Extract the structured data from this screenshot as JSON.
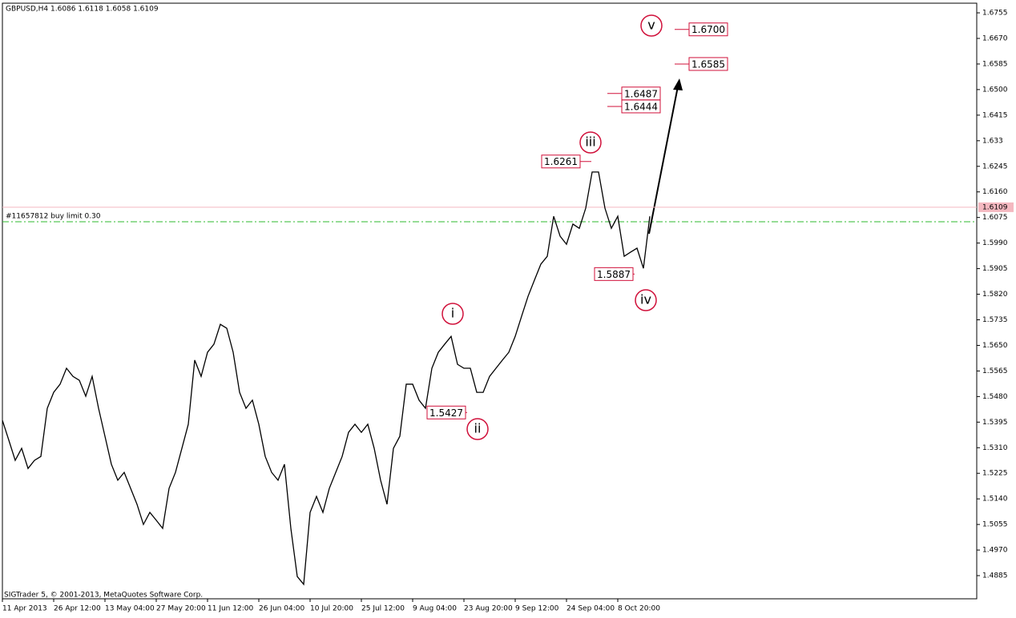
{
  "chart_data": {
    "type": "line",
    "title": "GBPUSD,H4  1.6086 1.6118 1.6058 1.6109",
    "footer": "SIGTrader 5, © 2001-2013, MetaQuotes Software Corp.",
    "categories": [
      "11 Apr 2013",
      null,
      null,
      null,
      null,
      null,
      null,
      null,
      "26 Apr 12:00",
      null,
      null,
      null,
      null,
      null,
      null,
      null,
      "13 May 04:00",
      null,
      null,
      null,
      null,
      null,
      null,
      null,
      "27 May 20:00",
      null,
      null,
      null,
      null,
      null,
      null,
      null,
      "11 Jun 12:00",
      null,
      null,
      null,
      null,
      null,
      null,
      null,
      "26 Jun 04:00",
      null,
      null,
      null,
      null,
      null,
      null,
      null,
      "10 Jul 20:00",
      null,
      null,
      null,
      null,
      null,
      null,
      null,
      "25 Jul 12:00",
      null,
      null,
      null,
      null,
      null,
      null,
      null,
      "9 Aug 04:00",
      null,
      null,
      null,
      null,
      null,
      null,
      null,
      "23 Aug 20:00",
      null,
      null,
      null,
      null,
      null,
      null,
      null,
      "9 Sep 12:00",
      null,
      null,
      null,
      null,
      null,
      null,
      null,
      "24 Sep 04:00",
      null,
      null,
      null,
      null,
      null,
      null,
      null,
      "8 Oct 20:00",
      null,
      null,
      null,
      null,
      null
    ],
    "series": [
      {
        "name": "GBPUSD",
        "color": "#000000",
        "values": [
          1.5401,
          1.5335,
          1.5268,
          1.5308,
          1.5241,
          1.5268,
          1.5281,
          1.5441,
          1.5494,
          1.5521,
          1.5574,
          1.5547,
          1.5534,
          1.5481,
          1.5547,
          1.5441,
          1.5348,
          1.5255,
          1.5202,
          1.5228,
          1.5175,
          1.5122,
          1.5055,
          1.5095,
          1.5069,
          1.5042,
          1.5175,
          1.5228,
          1.5308,
          1.5388,
          1.5601,
          1.5547,
          1.5627,
          1.5654,
          1.572,
          1.5707,
          1.5627,
          1.5494,
          1.5441,
          1.5468,
          1.5388,
          1.5281,
          1.5228,
          1.5202,
          1.5255,
          1.5042,
          1.4882,
          1.4856,
          1.5095,
          1.5148,
          1.5095,
          1.5175,
          1.5228,
          1.5281,
          1.5361,
          1.5388,
          1.5361,
          1.5388,
          1.5308,
          1.5202,
          1.5122,
          1.5308,
          1.5348,
          1.5521,
          1.5521,
          1.5468,
          1.5441,
          1.5574,
          1.5627,
          1.5654,
          1.568,
          1.5587,
          1.5574,
          1.5574,
          1.5494,
          1.5494,
          1.5547,
          1.5574,
          1.5601,
          1.5627,
          1.568,
          1.5747,
          1.5813,
          1.5867,
          1.592,
          1.5946,
          1.6079,
          1.6013,
          1.5986,
          1.6053,
          1.6039,
          1.6106,
          1.6226,
          1.6226,
          1.6106,
          1.6039,
          1.6079,
          1.5946,
          1.596,
          1.5973,
          1.5906,
          1.6079
        ]
      }
    ],
    "ylim": [
      1.4808,
      1.6787
    ],
    "yticks": [
      1.6755,
      {
        "value": 1.667,
        "label": "1.6670"
      },
      1.6585,
      {
        "value": 1.65,
        "label": "1.6500"
      },
      1.6415,
      1.633,
      1.6245,
      {
        "value": 1.616,
        "label": "1.6160"
      },
      1.6075,
      {
        "value": 1.599,
        "label": "1.5990"
      },
      1.5905,
      {
        "value": 1.582,
        "label": "1.5820"
      },
      1.5735,
      {
        "value": 1.565,
        "label": "1.5650"
      },
      1.5565,
      {
        "value": 1.548,
        "label": "1.5480"
      },
      1.5395,
      {
        "value": 1.531,
        "label": "1.5310"
      },
      1.5225,
      {
        "value": 1.514,
        "label": "1.5140"
      },
      1.5055,
      {
        "value": 1.497,
        "label": "1.4970"
      },
      1.4885
    ],
    "bid": {
      "value": 1.6109,
      "label": "1.6109",
      "color": "#f4b8c0"
    },
    "order_line": {
      "value": 1.6061,
      "label": "#11657812 buy limit 0.30",
      "color": "#2db82d"
    },
    "price_labels": [
      {
        "value": 1.67,
        "label": "1.6700"
      },
      {
        "value": 1.6585,
        "label": "1.6585"
      },
      {
        "value": 1.6487,
        "label": "1.6487"
      },
      {
        "value": 1.6444,
        "label": "1.6444"
      },
      {
        "value": 1.6261,
        "label": "1.6261"
      },
      {
        "value": 1.5887,
        "label": "1.5887"
      },
      {
        "value": 1.5427,
        "label": "1.5427"
      }
    ],
    "wave_labels": [
      "v",
      "iii",
      "i",
      "ii",
      "iv"
    ],
    "annotation_color": "#d0103a"
  }
}
